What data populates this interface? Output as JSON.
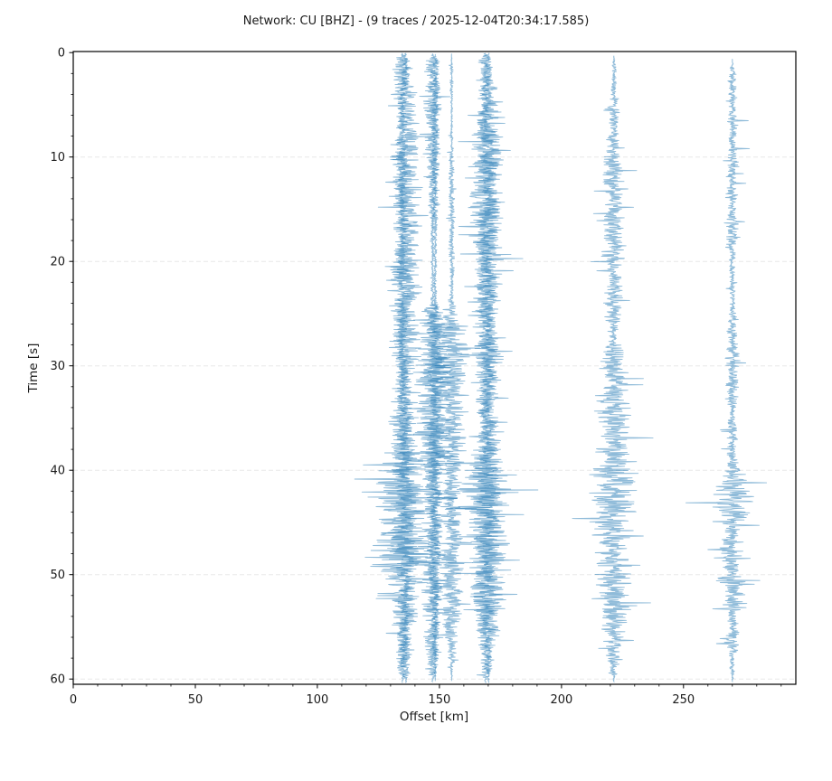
{
  "figure": {
    "title": "Network: CU [BHZ] - (9 traces / 2025-12-04T20:34:17.585)",
    "network": "CU",
    "channel": "BHZ",
    "trace_count_text": "9 traces",
    "timestamp": "2025-12-04T20:34:17.585",
    "background_color": "#ffffff"
  },
  "chart_data": {
    "type": "line",
    "subtype": "seismic-record-section",
    "title": "Network: CU [BHZ] - (9 traces / 2025-12-04T20:34:17.585)",
    "xlabel": "Offset [km]",
    "ylabel": "Time [s]",
    "xlim": [
      0,
      296
    ],
    "ylim": [
      -0.1,
      60.5
    ],
    "y_inverted": true,
    "x_major_ticks": [
      0,
      50,
      100,
      150,
      200,
      250
    ],
    "x_minor_step": 10,
    "y_major_ticks": [
      0,
      10,
      20,
      30,
      40,
      50,
      60
    ],
    "y_minor_step": 2,
    "grid": "horizontal-major",
    "grid_color": "#e8e8e8",
    "spine_color": "#000000",
    "trace_color": "#1f77b4",
    "trace_opacity": 0.5,
    "n_traces": 9,
    "traces": [
      {
        "offset_km": 134.8,
        "seed": 11,
        "envelope": [
          [
            0.05,
            0.1
          ],
          [
            0.7,
            3.2
          ],
          [
            3,
            4
          ],
          [
            8,
            4.2
          ],
          [
            12,
            5
          ],
          [
            16,
            4.4
          ],
          [
            20,
            5
          ],
          [
            23,
            5.4
          ],
          [
            26,
            4.6
          ],
          [
            30,
            4.8
          ],
          [
            34,
            5
          ],
          [
            38,
            6.5
          ],
          [
            40,
            8.5
          ],
          [
            42,
            9.5
          ],
          [
            45,
            8.8
          ],
          [
            48,
            9
          ],
          [
            50,
            8
          ],
          [
            52,
            6.8
          ],
          [
            55,
            5.2
          ],
          [
            57.5,
            4
          ],
          [
            59.5,
            2
          ],
          [
            60.4,
            0.1
          ]
        ],
        "spikes": [
          [
            12.4,
            -6.8
          ],
          [
            20.5,
            -7
          ],
          [
            22.8,
            -6
          ],
          [
            39.5,
            -16
          ],
          [
            42.1,
            -16.5
          ],
          [
            44.7,
            -9.5
          ],
          [
            47.2,
            -12
          ],
          [
            49.2,
            -13
          ],
          [
            51.8,
            -10
          ]
        ]
      },
      {
        "offset_km": 136.2,
        "seed": 22,
        "envelope": [
          [
            0.05,
            0.1
          ],
          [
            0.8,
            2.8
          ],
          [
            5,
            4
          ],
          [
            10,
            4.4
          ],
          [
            15,
            4.2
          ],
          [
            20,
            4.6
          ],
          [
            25,
            4.4
          ],
          [
            30,
            4.8
          ],
          [
            35,
            5.2
          ],
          [
            39,
            7
          ],
          [
            43,
            9
          ],
          [
            46,
            8.5
          ],
          [
            49,
            7.5
          ],
          [
            52,
            6
          ],
          [
            55,
            4.8
          ],
          [
            58,
            3
          ],
          [
            60.4,
            0.1
          ]
        ],
        "spikes": [
          [
            41.3,
            -12
          ],
          [
            43.9,
            13
          ],
          [
            46,
            -10
          ],
          [
            50.4,
            9
          ],
          [
            55.6,
            -8
          ]
        ]
      },
      {
        "offset_km": 147.2,
        "seed": 33,
        "envelope": [
          [
            0.1,
            0.1
          ],
          [
            0.9,
            2.4
          ],
          [
            4,
            2.9
          ],
          [
            9,
            2.6
          ],
          [
            13,
            1.8
          ],
          [
            16,
            1.1
          ],
          [
            20,
            0.9
          ],
          [
            24,
            1
          ],
          [
            24.9,
            5.5
          ],
          [
            27,
            6.2
          ],
          [
            30,
            5.6
          ],
          [
            34,
            5.8
          ],
          [
            38,
            6
          ],
          [
            42,
            6.2
          ],
          [
            45,
            6.4
          ],
          [
            48,
            5.2
          ],
          [
            51,
            4.4
          ],
          [
            54,
            3.6
          ],
          [
            57,
            2.6
          ],
          [
            59.5,
            1.2
          ],
          [
            60.3,
            0.05
          ]
        ],
        "spikes": [
          [
            26.1,
            7
          ],
          [
            37.8,
            10
          ],
          [
            44.9,
            11
          ],
          [
            48.8,
            -8
          ]
        ]
      },
      {
        "offset_km": 148.3,
        "seed": 44,
        "envelope": [
          [
            0.15,
            0.1
          ],
          [
            1.2,
            1.8
          ],
          [
            6,
            2.2
          ],
          [
            11,
            1.6
          ],
          [
            15,
            1
          ],
          [
            20,
            0.8
          ],
          [
            23.5,
            0.9
          ],
          [
            25.5,
            4.6
          ],
          [
            29,
            5.4
          ],
          [
            33,
            5
          ],
          [
            37,
            5.2
          ],
          [
            41,
            5.6
          ],
          [
            45,
            5
          ],
          [
            49,
            4.4
          ],
          [
            53,
            3.6
          ],
          [
            57,
            2.6
          ],
          [
            60.2,
            0.05
          ]
        ],
        "spikes": [
          [
            31.6,
            8
          ],
          [
            42.7,
            9
          ],
          [
            47.3,
            -7
          ]
        ]
      },
      {
        "offset_km": 155.0,
        "seed": 55,
        "envelope": [
          [
            0.1,
            0.08
          ],
          [
            1.5,
            0.8
          ],
          [
            6,
            1
          ],
          [
            12,
            1.1
          ],
          [
            18,
            0.9
          ],
          [
            23,
            1.2
          ],
          [
            25,
            1.8
          ],
          [
            26,
            4.8
          ],
          [
            29,
            5.4
          ],
          [
            33,
            4.6
          ],
          [
            37,
            4.4
          ],
          [
            41,
            4.8
          ],
          [
            45,
            4.4
          ],
          [
            49,
            3.8
          ],
          [
            53,
            3.4
          ],
          [
            56,
            2.6
          ],
          [
            58.5,
            1.6
          ],
          [
            60.2,
            0.05
          ]
        ],
        "spikes": [
          [
            24.6,
            -3.5
          ],
          [
            27.9,
            6
          ],
          [
            55.8,
            -5
          ]
        ]
      },
      {
        "offset_km": 168.8,
        "seed": 66,
        "envelope": [
          [
            0.05,
            0.1
          ],
          [
            0.7,
            3.6
          ],
          [
            4,
            4.6
          ],
          [
            9,
            4.8
          ],
          [
            14,
            5
          ],
          [
            19,
            6.2
          ],
          [
            22,
            5.8
          ],
          [
            25,
            5
          ],
          [
            28,
            7.4
          ],
          [
            31,
            6.8
          ],
          [
            34,
            7.2
          ],
          [
            38,
            7.6
          ],
          [
            42,
            8
          ],
          [
            45,
            8.4
          ],
          [
            48,
            7.8
          ],
          [
            51,
            7.2
          ],
          [
            54,
            6
          ],
          [
            56.5,
            4.8
          ],
          [
            58.5,
            3.2
          ],
          [
            60.4,
            0.1
          ]
        ],
        "spikes": [
          [
            28.6,
            11
          ],
          [
            35.4,
            9
          ],
          [
            43.5,
            -11
          ],
          [
            48.6,
            14
          ],
          [
            51.9,
            13
          ]
        ]
      },
      {
        "offset_km": 170.2,
        "seed": 77,
        "envelope": [
          [
            0.05,
            0.1
          ],
          [
            0.8,
            3.2
          ],
          [
            5,
            4.2
          ],
          [
            10,
            4.6
          ],
          [
            15,
            5
          ],
          [
            20,
            5.8
          ],
          [
            24,
            5.2
          ],
          [
            28,
            6.6
          ],
          [
            32,
            7
          ],
          [
            36,
            7.4
          ],
          [
            40,
            7.8
          ],
          [
            44,
            8.2
          ],
          [
            47,
            7.6
          ],
          [
            50,
            7
          ],
          [
            53,
            5.8
          ],
          [
            56,
            4.4
          ],
          [
            58.5,
            2.8
          ],
          [
            60.4,
            0.1
          ]
        ],
        "spikes": [
          [
            33.1,
            8
          ],
          [
            41.8,
            9
          ],
          [
            46.2,
            -9
          ],
          [
            52.4,
            7
          ]
        ]
      },
      {
        "offset_km": 221.5,
        "seed": 88,
        "envelope": [
          [
            0.3,
            0.08
          ],
          [
            1.2,
            1
          ],
          [
            4,
            2.4
          ],
          [
            8,
            3.4
          ],
          [
            12,
            4.6
          ],
          [
            15,
            6
          ],
          [
            17,
            5.4
          ],
          [
            20,
            5.8
          ],
          [
            23,
            4.8
          ],
          [
            26,
            4.4
          ],
          [
            30,
            4.5
          ],
          [
            34,
            5.4
          ],
          [
            38,
            6
          ],
          [
            41,
            7
          ],
          [
            44,
            8.2
          ],
          [
            46,
            7.6
          ],
          [
            48,
            6.6
          ],
          [
            51,
            5.4
          ],
          [
            54,
            4.8
          ],
          [
            56.5,
            3.6
          ],
          [
            58.5,
            2.2
          ],
          [
            60.3,
            0.05
          ]
        ],
        "spikes": [
          [
            14.8,
            8
          ],
          [
            16.1,
            -7
          ],
          [
            20.9,
            -7
          ],
          [
            36.9,
            16
          ],
          [
            40.4,
            -10
          ],
          [
            44.6,
            -17
          ],
          [
            46.3,
            12
          ],
          [
            52.3,
            -9
          ],
          [
            56.3,
            8
          ]
        ]
      },
      {
        "offset_km": 270.0,
        "seed": 99,
        "envelope": [
          [
            0.6,
            0.06
          ],
          [
            2,
            1.4
          ],
          [
            6,
            2
          ],
          [
            10,
            2.6
          ],
          [
            14,
            3
          ],
          [
            17,
            3.1
          ],
          [
            20,
            2.5
          ],
          [
            24,
            2.2
          ],
          [
            28,
            2.3
          ],
          [
            32,
            2.7
          ],
          [
            36,
            3
          ],
          [
            39.5,
            3.3
          ],
          [
            41,
            5.5
          ],
          [
            43,
            8.5
          ],
          [
            45,
            9
          ],
          [
            47,
            8
          ],
          [
            49,
            7
          ],
          [
            51,
            6.4
          ],
          [
            53,
            5.8
          ],
          [
            55,
            5
          ],
          [
            56.5,
            4.4
          ],
          [
            58,
            3
          ],
          [
            59.5,
            1.6
          ],
          [
            60.3,
            0.05
          ]
        ],
        "spikes": [
          [
            6.5,
            6.5
          ],
          [
            9.2,
            7
          ],
          [
            12.5,
            5.5
          ],
          [
            16.2,
            5
          ],
          [
            43.1,
            -19
          ],
          [
            45.3,
            11
          ],
          [
            47.6,
            -10
          ],
          [
            50.9,
            9
          ],
          [
            53.3,
            -8
          ],
          [
            56.6,
            -6.5
          ]
        ]
      }
    ]
  }
}
